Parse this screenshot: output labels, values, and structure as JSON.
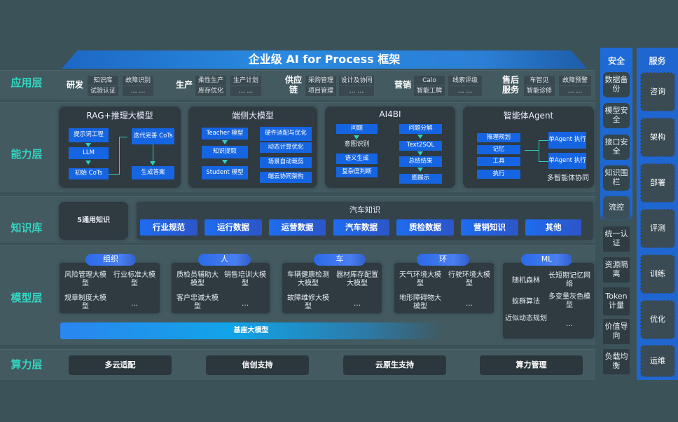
{
  "title": "企业级 AI for Process 框架",
  "layers": {
    "app": "应用层",
    "capability": "能力层",
    "knowledge": "知识库",
    "model": "模型层",
    "compute": "算力层"
  },
  "app_groups": [
    {
      "name": "研发",
      "items": [
        "知识库",
        "试验认证",
        "故障识别",
        "… …"
      ]
    },
    {
      "name": "生产",
      "items": [
        "柔性生产",
        "库存优化",
        "生产计划",
        "… …"
      ]
    },
    {
      "name": "供应链",
      "items": [
        "采购管理",
        "项目管理",
        "设计及协同",
        "… …"
      ]
    },
    {
      "name": "营销",
      "items": [
        "Calo",
        "智能工牌",
        "线索评级",
        "… …"
      ]
    },
    {
      "name": "售后服务",
      "items": [
        "车智见",
        "智能诊修",
        "故障预警",
        "… …"
      ]
    }
  ],
  "capability": {
    "rag": {
      "title": "RAG+推理大模型",
      "items": [
        "提示词工程",
        "LLM",
        "初始 CoTs",
        "迭代完善 CoTs",
        "生成答案"
      ]
    },
    "edge": {
      "title": "端侧大模型",
      "items": [
        "Teacher 模型",
        "知识提取",
        "Student 模型",
        "硬件适配与优化",
        "动态计算优化",
        "场景自动裁剪",
        "端云协同架构"
      ]
    },
    "ai4bi": {
      "title": "AI4BI",
      "items": [
        "问题",
        "意图识别",
        "语义生成",
        "复杂度判断",
        "问题分解",
        "Text2SQL",
        "总结结果",
        "图展示"
      ]
    },
    "agent": {
      "title": "智能体Agent",
      "items": [
        "推理规划",
        "记忆",
        "工具",
        "执行",
        "单Agent 执行",
        "单Agent 执行"
      ],
      "caption": "多智能体协同"
    }
  },
  "knowledge": {
    "general": "5通用知识",
    "auto_title": "汽车知识",
    "chips": [
      "行业规范",
      "运行数据",
      "运营数据",
      "汽车数据",
      "质检数据",
      "营销知识",
      "其他"
    ]
  },
  "model": {
    "groups": [
      {
        "name": "组织",
        "items": [
          "风险管理大模型",
          "行业标准大模型",
          "规章制度大模型",
          "…"
        ]
      },
      {
        "name": "人",
        "items": [
          "质检员辅助大模型",
          "销售培训大模型",
          "客户忠诚大模型",
          "…"
        ]
      },
      {
        "name": "车",
        "items": [
          "车辆健康检测大模型",
          "器材库存配置大模型",
          "故障维修大模型",
          "…"
        ]
      },
      {
        "name": "环",
        "items": [
          "天气环境大模型",
          "行驶环境大模型",
          "地形障碍物大模型",
          "…"
        ]
      }
    ],
    "ml": {
      "name": "ML",
      "items": [
        "随机森林",
        "长短期记忆网络",
        "蚁群算法",
        "多变量灰色模型",
        "近似动态规划",
        "…"
      ]
    },
    "base": "基座大模型"
  },
  "compute": [
    "多云适配",
    "信创支持",
    "云原生支持",
    "算力管理"
  ],
  "security": {
    "title": "安全",
    "items": [
      "数据备份",
      "模型安全",
      "接口安全",
      "知识围栏",
      "流控",
      "统一认证",
      "资源隔离",
      "Token 计量",
      "价值导向",
      "负载均衡"
    ]
  },
  "service": {
    "title": "服务",
    "items": [
      "咨询",
      "架构",
      "部署",
      "评测",
      "训练",
      "优化",
      "运维"
    ]
  }
}
